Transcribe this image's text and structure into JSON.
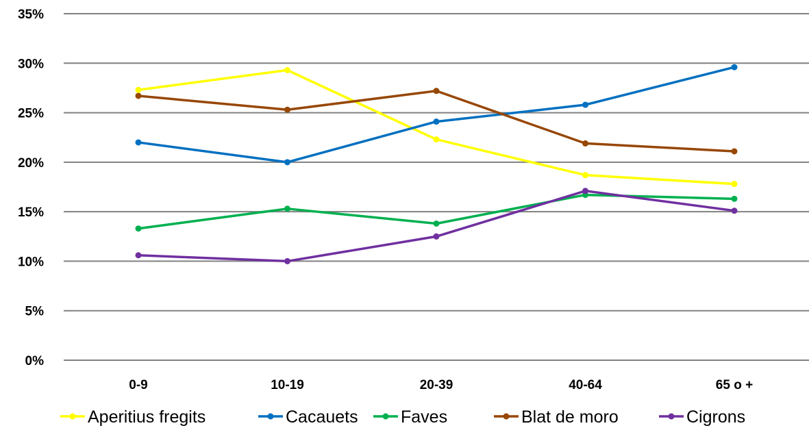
{
  "chart_data": {
    "type": "line",
    "categories": [
      "0-9",
      "10-19",
      "20-39",
      "40-64",
      "65 o +"
    ],
    "y_ticks": [
      "0%",
      "5%",
      "10%",
      "15%",
      "20%",
      "25%",
      "30%",
      "35%"
    ],
    "ylim": [
      0,
      35
    ],
    "y_unit": "%",
    "grid": true,
    "legend_position": "bottom",
    "series": [
      {
        "name": "Aperitius fregits",
        "color": "#ffff00",
        "values": [
          27.3,
          29.3,
          22.3,
          18.7,
          17.8
        ]
      },
      {
        "name": "Cacauets",
        "color": "#0070c0",
        "values": [
          22.0,
          20.0,
          24.1,
          25.8,
          29.6
        ]
      },
      {
        "name": "Faves",
        "color": "#00b050",
        "values": [
          13.3,
          15.3,
          13.8,
          16.7,
          16.3
        ]
      },
      {
        "name": "Blat de moro",
        "color": "#974706",
        "values": [
          26.7,
          25.3,
          27.2,
          21.9,
          21.1
        ]
      },
      {
        "name": "Cigrons",
        "color": "#7030a0",
        "values": [
          10.6,
          10.0,
          12.5,
          17.1,
          15.1
        ]
      }
    ]
  }
}
